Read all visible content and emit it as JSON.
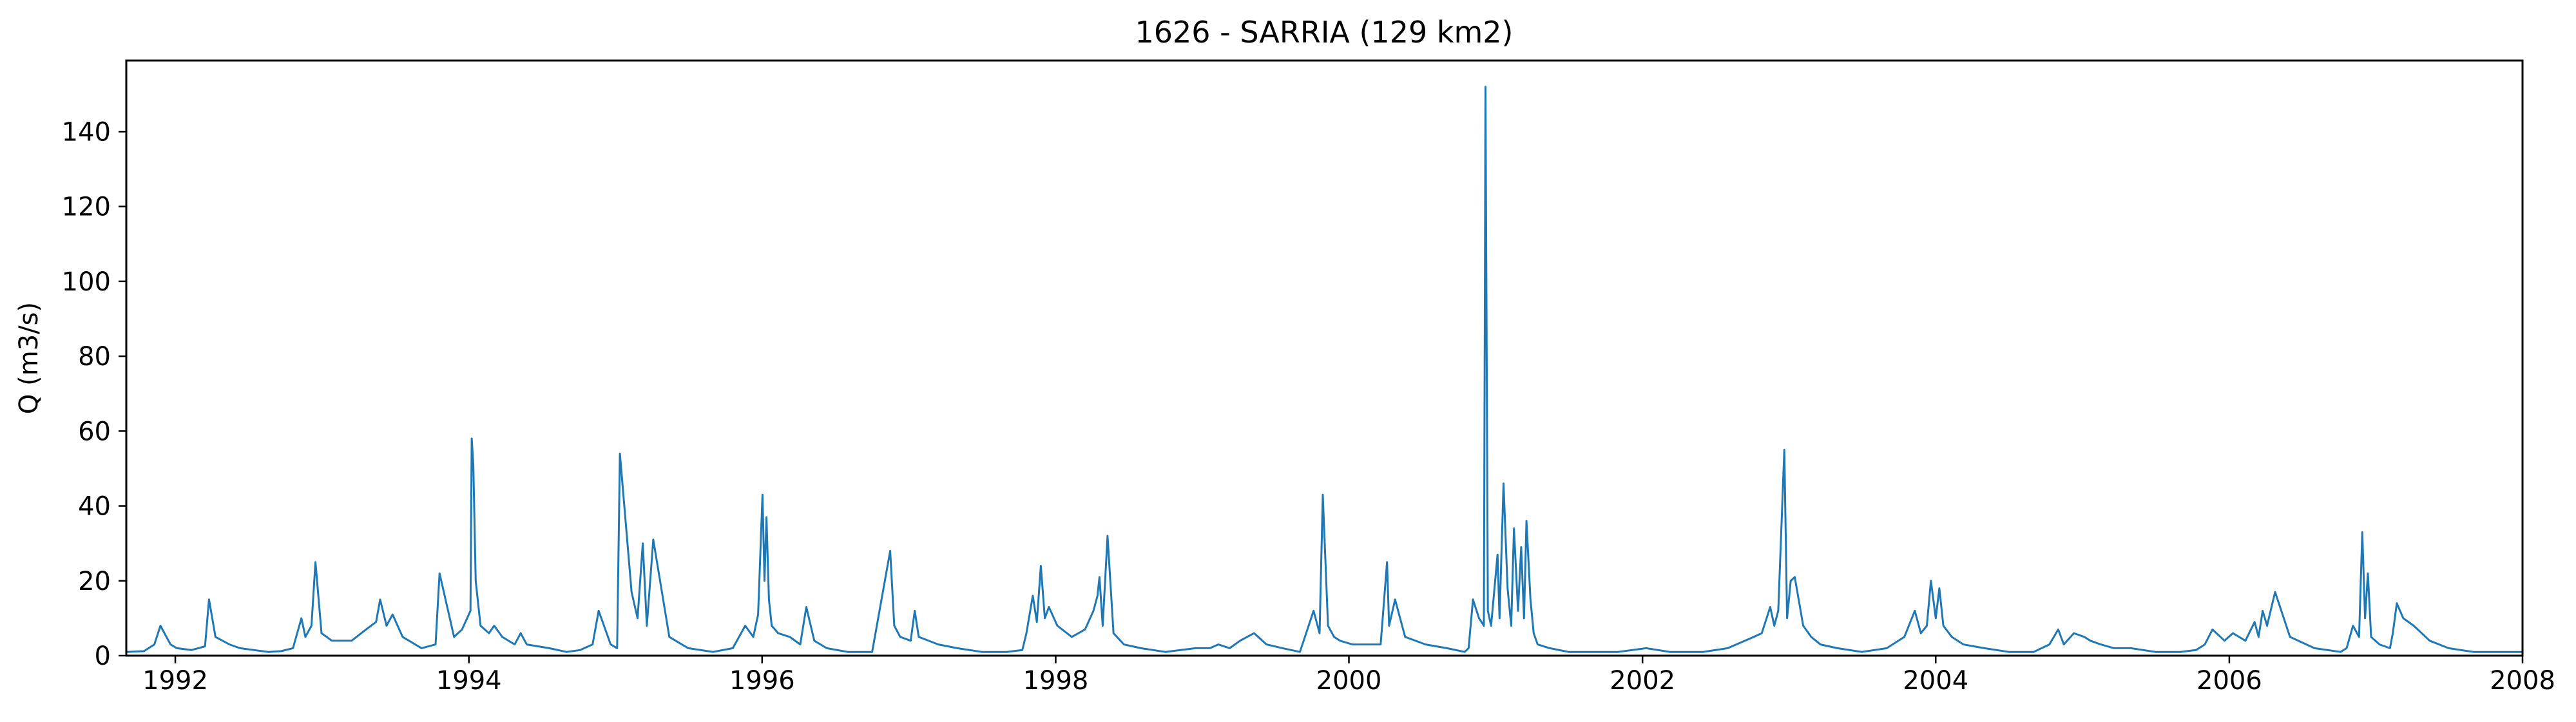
{
  "chart_data": {
    "type": "line",
    "title": "1626 - SARRIA (129 km2)",
    "xlabel": "",
    "ylabel": "Q (m3/s)",
    "x_range": [
      "1991-09-01",
      "2008-01-01"
    ],
    "ylim": [
      0,
      159
    ],
    "x_ticks": [
      "1992",
      "1994",
      "1996",
      "1998",
      "2000",
      "2002",
      "2004",
      "2006",
      "2008"
    ],
    "y_ticks": [
      "0",
      "20",
      "40",
      "60",
      "80",
      "100",
      "120",
      "140"
    ],
    "grid": false,
    "legend": "none",
    "line_color": "#1f77b4",
    "series": [
      {
        "x": [
          "1991-09-01",
          "1991-10-15",
          "1991-11-10",
          "1991-11-25",
          "1991-12-20",
          "1992-01-05",
          "1992-02-10",
          "1992-03-15",
          "1992-03-25",
          "1992-04-10",
          "1992-05-15",
          "1992-06-10",
          "1992-07-15",
          "1992-08-20",
          "1992-09-20",
          "1992-10-20",
          "1992-11-10",
          "1992-11-20",
          "1992-12-05",
          "1992-12-15",
          "1992-12-30",
          "1993-01-25",
          "1993-03-15",
          "1993-04-20",
          "1993-05-15",
          "1993-05-25",
          "1993-06-10",
          "1993-06-25",
          "1993-07-20",
          "1993-09-05",
          "1993-10-10",
          "1993-10-20",
          "1993-11-25",
          "1993-12-15",
          "1994-01-05",
          "1994-01-08",
          "1994-01-12",
          "1994-01-18",
          "1994-01-30",
          "1994-02-20",
          "1994-03-05",
          "1994-03-25",
          "1994-04-25",
          "1994-05-10",
          "1994-05-25",
          "1994-07-20",
          "1994-09-01",
          "1994-10-05",
          "1994-11-05",
          "1994-11-20",
          "1994-12-20",
          "1995-01-05",
          "1995-01-12",
          "1995-02-10",
          "1995-02-25",
          "1995-03-10",
          "1995-03-20",
          "1995-04-05",
          "1995-05-15",
          "1995-07-01",
          "1995-09-01",
          "1995-10-20",
          "1995-11-20",
          "1995-12-10",
          "1995-12-22",
          "1996-01-02",
          "1996-01-07",
          "1996-01-12",
          "1996-01-18",
          "1996-01-25",
          "1996-02-10",
          "1996-03-10",
          "1996-04-05",
          "1996-04-20",
          "1996-05-10",
          "1996-06-10",
          "1996-08-01",
          "1996-10-01",
          "1996-11-15",
          "1996-11-25",
          "1996-12-10",
          "1997-01-05",
          "1997-01-15",
          "1997-01-25",
          "1997-03-15",
          "1997-05-01",
          "1997-07-01",
          "1997-09-01",
          "1997-10-10",
          "1997-10-20",
          "1997-11-05",
          "1997-11-15",
          "1997-11-25",
          "1997-12-05",
          "1997-12-15",
          "1998-01-05",
          "1998-02-10",
          "1998-03-15",
          "1998-04-05",
          "1998-04-15",
          "1998-04-20",
          "1998-04-28",
          "1998-05-10",
          "1998-05-25",
          "1998-06-20",
          "1998-08-01",
          "1998-10-01",
          "1998-12-15",
          "1999-01-20",
          "1999-02-10",
          "1999-03-10",
          "1999-04-05",
          "1999-05-10",
          "1999-06-10",
          "1999-07-20",
          "1999-09-01",
          "1999-10-05",
          "1999-10-20",
          "1999-10-28",
          "1999-11-10",
          "1999-11-25",
          "1999-12-10",
          "2000-01-10",
          "2000-02-20",
          "2000-03-20",
          "2000-04-05",
          "2000-04-10",
          "2000-04-25",
          "2000-05-20",
          "2000-07-10",
          "2000-09-01",
          "2000-10-15",
          "2000-10-25",
          "2000-11-05",
          "2000-11-20",
          "2000-12-02",
          "2000-12-06",
          "2000-12-12",
          "2000-12-20",
          "2001-01-05",
          "2001-01-10",
          "2001-01-20",
          "2001-01-30",
          "2001-02-08",
          "2001-02-15",
          "2001-02-25",
          "2001-03-05",
          "2001-03-12",
          "2001-03-18",
          "2001-03-28",
          "2001-04-05",
          "2001-04-15",
          "2001-05-15",
          "2001-07-01",
          "2001-09-01",
          "2001-11-01",
          "2002-01-10",
          "2002-03-10",
          "2002-04-20",
          "2002-06-01",
          "2002-08-01",
          "2002-10-05",
          "2002-10-25",
          "2002-11-15",
          "2002-11-25",
          "2002-12-05",
          "2002-12-20",
          "2002-12-27",
          "2003-01-05",
          "2003-01-15",
          "2003-02-05",
          "2003-02-25",
          "2003-03-20",
          "2003-05-01",
          "2003-07-01",
          "2003-09-01",
          "2003-10-15",
          "2003-11-10",
          "2003-11-25",
          "2003-12-10",
          "2003-12-20",
          "2004-01-01",
          "2004-01-10",
          "2004-01-20",
          "2004-02-10",
          "2004-03-10",
          "2004-05-01",
          "2004-07-01",
          "2004-09-01",
          "2004-10-10",
          "2004-11-01",
          "2004-11-15",
          "2004-12-10",
          "2005-01-05",
          "2005-01-20",
          "2005-02-15",
          "2005-03-20",
          "2005-05-01",
          "2005-07-01",
          "2005-09-01",
          "2005-10-10",
          "2005-11-01",
          "2005-11-20",
          "2005-12-20",
          "2006-01-10",
          "2006-02-10",
          "2006-03-05",
          "2006-03-15",
          "2006-03-25",
          "2006-04-05",
          "2006-04-25",
          "2006-06-01",
          "2006-08-01",
          "2006-10-05",
          "2006-10-20",
          "2006-11-05",
          "2006-11-20",
          "2006-11-28",
          "2006-12-05",
          "2006-12-12",
          "2006-12-20",
          "2007-01-10",
          "2007-02-05",
          "2007-02-12",
          "2007-02-22",
          "2007-03-10",
          "2007-04-05",
          "2007-05-15",
          "2007-07-01",
          "2007-09-01",
          "2007-11-01",
          "2007-12-10",
          "2008-01-01"
        ],
        "y": [
          1,
          1.2,
          3,
          8,
          3,
          2,
          1.5,
          2.5,
          15,
          5,
          3,
          2,
          1.5,
          1,
          1.2,
          2,
          10,
          5,
          8,
          25,
          6,
          4,
          4,
          7,
          9,
          15,
          8,
          11,
          5,
          2,
          3,
          22,
          5,
          7,
          12,
          58,
          51,
          20,
          8,
          6,
          8,
          5,
          3,
          6,
          3,
          2,
          1,
          1.5,
          3,
          12,
          3,
          2,
          54,
          17,
          10,
          30,
          8,
          31,
          5,
          2,
          1,
          2,
          8,
          5,
          11,
          43,
          20,
          37,
          15,
          8,
          6,
          5,
          3,
          13,
          4,
          2,
          1,
          1,
          28,
          8,
          5,
          4,
          12,
          5,
          3,
          2,
          1,
          1,
          1.5,
          6,
          16,
          9,
          24,
          10,
          13,
          8,
          5,
          7,
          12,
          16,
          21,
          8,
          32,
          6,
          3,
          2,
          1,
          2,
          2,
          3,
          2,
          4,
          6,
          3,
          2,
          1,
          12,
          6,
          43,
          8,
          5,
          4,
          3,
          3,
          3,
          25,
          8,
          15,
          5,
          3,
          2,
          1,
          2,
          15,
          10,
          8,
          152,
          12,
          8,
          27,
          10,
          46,
          18,
          8,
          34,
          12,
          29,
          10,
          36,
          15,
          6,
          3,
          2,
          1,
          1,
          1,
          2,
          1,
          1,
          1,
          2,
          5,
          6,
          13,
          8,
          12,
          55,
          10,
          20,
          21,
          8,
          5,
          3,
          2,
          1,
          2,
          5,
          12,
          6,
          8,
          20,
          10,
          18,
          8,
          5,
          3,
          2,
          1,
          1,
          3,
          7,
          3,
          6,
          5,
          4,
          3,
          2,
          2,
          1,
          1,
          1.5,
          3,
          7,
          4,
          6,
          4,
          9,
          5,
          12,
          8,
          17,
          5,
          2,
          1,
          2,
          8,
          5,
          33,
          10,
          22,
          5,
          3,
          2,
          6,
          14,
          10,
          8,
          4,
          2,
          1,
          1,
          1,
          1
        ]
      }
    ]
  }
}
